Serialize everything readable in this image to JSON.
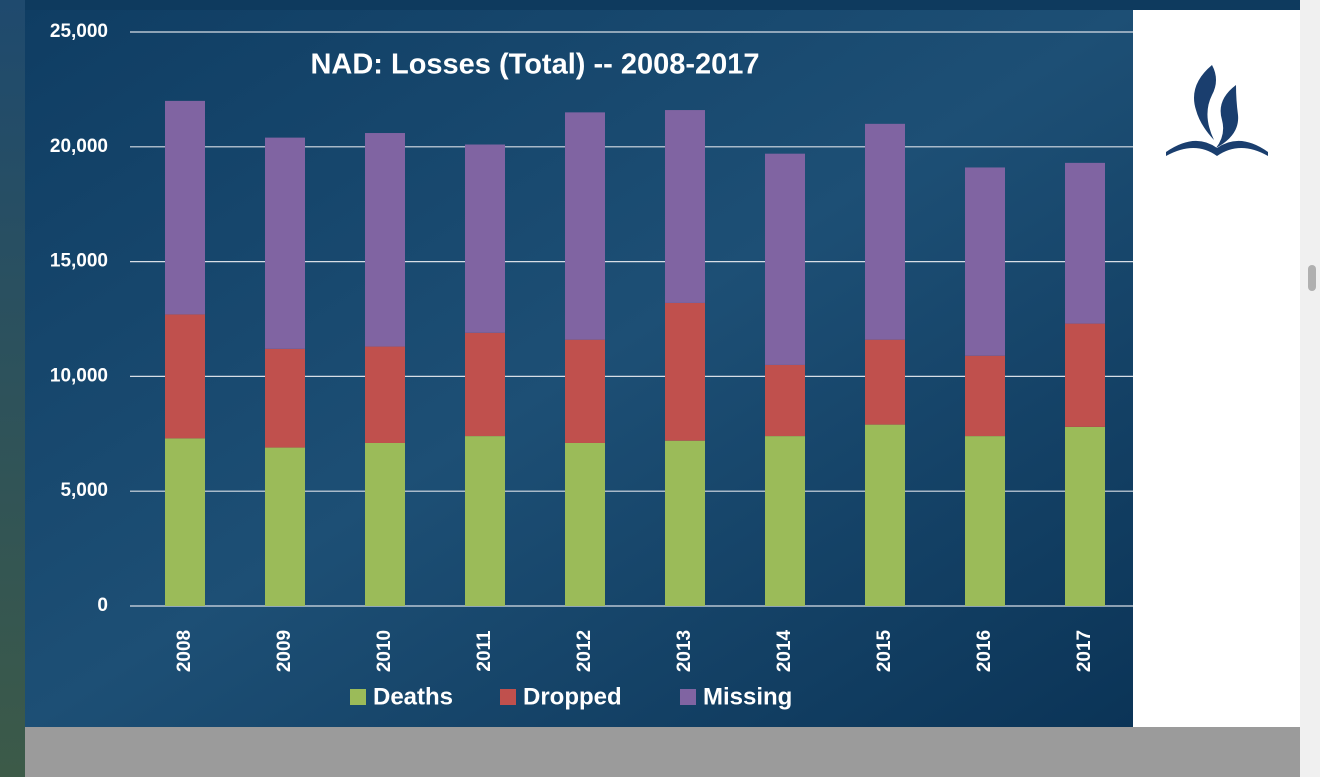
{
  "chart_data": {
    "type": "stacked_bar",
    "title": "NAD:  Losses (Total) -- 2008-2017",
    "categories": [
      "2008",
      "2009",
      "2010",
      "2011",
      "2012",
      "2013",
      "2014",
      "2015",
      "2016",
      "2017"
    ],
    "series": [
      {
        "name": "Deaths",
        "color": "#9bbb59",
        "values": [
          7300,
          6900,
          7100,
          7400,
          7100,
          7200,
          7400,
          7900,
          7400,
          7800
        ]
      },
      {
        "name": "Dropped",
        "color": "#c0504d",
        "values": [
          5400,
          4300,
          4200,
          4500,
          4500,
          6000,
          3100,
          3700,
          3500,
          4500
        ]
      },
      {
        "name": "Missing",
        "color": "#8064a2",
        "values": [
          9300,
          9200,
          9300,
          8200,
          9900,
          8400,
          9200,
          9400,
          8200,
          7000
        ]
      }
    ],
    "ylim": [
      0,
      25000
    ],
    "yticks": [
      0,
      {
        "value": 5000,
        "label": "5,000"
      },
      {
        "value": 10000,
        "label": "10,000"
      },
      {
        "value": 15000,
        "label": "15,000"
      },
      {
        "value": 20000,
        "label": "20,000"
      },
      {
        "value": 25000,
        "label": "25,000"
      }
    ],
    "grid": true,
    "legend": "bottom"
  }
}
